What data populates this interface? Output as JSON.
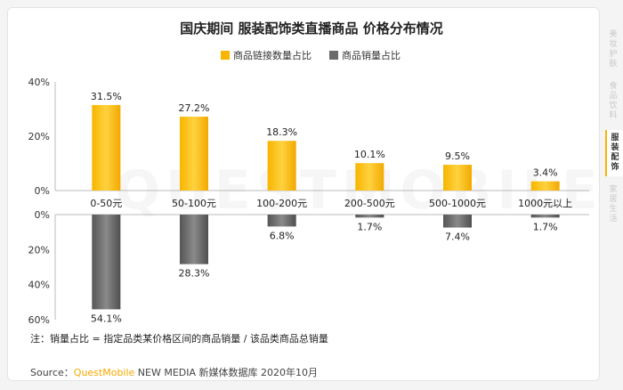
{
  "chart_data": {
    "type": "bar",
    "title": "国庆期间 服装配饰类直播商品 价格分布情况",
    "categories": [
      "0-50元",
      "50-100元",
      "100-200元",
      "200-500元",
      "500-1000元",
      "1000元以上"
    ],
    "series": [
      {
        "name": "商品链接数量占比",
        "values": [
          31.5,
          27.2,
          18.3,
          10.1,
          9.5,
          3.4
        ],
        "labels": [
          "31.5%",
          "27.2%",
          "18.3%",
          "10.1%",
          "9.5%",
          "3.4%"
        ],
        "color": "#f7b500"
      },
      {
        "name": "商品销量占比",
        "values": [
          54.1,
          28.3,
          6.8,
          1.7,
          7.4,
          1.7
        ],
        "labels": [
          "54.1%",
          "28.3%",
          "6.8%",
          "1.7%",
          "7.4%",
          "1.7%"
        ],
        "color": "#6b6b6b"
      }
    ],
    "top_axis": {
      "ylim": [
        0,
        40
      ],
      "ticks": [
        "40%",
        "20%",
        "0%"
      ]
    },
    "bottom_axis": {
      "ylim": [
        0,
        60
      ],
      "ticks": [
        "0%",
        "20%",
        "40%",
        "60%"
      ]
    },
    "legend_position": "top-center"
  },
  "note": "注：销量占比 = 指定品类某价格区间的商品销量 / 该品类商品总销量",
  "source": {
    "prefix": "Source：",
    "brand": "QuestMobile",
    "rest": " NEW MEDIA 新媒体数据库 2020年10月"
  },
  "watermark": "QUESTMOBILE",
  "side_tabs": [
    {
      "label": "美妆护肤",
      "active": false
    },
    {
      "label": "食品饮料",
      "active": false
    },
    {
      "label": "服装配饰",
      "active": true
    },
    {
      "label": "家居生活",
      "active": false
    }
  ]
}
